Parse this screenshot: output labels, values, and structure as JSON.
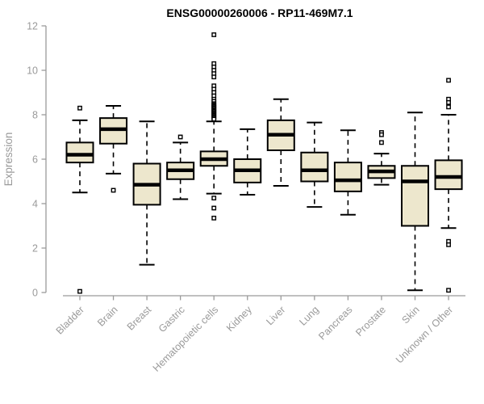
{
  "chart_data": {
    "type": "boxplot",
    "title": "ENSG00000260006 - RP11-469M7.1",
    "xlabel": "",
    "ylabel": "Expression",
    "ylim": [
      0,
      12
    ],
    "yticks": [
      0,
      2,
      4,
      6,
      8,
      10,
      12
    ],
    "grid": false,
    "legend": false,
    "box_fill_color": "#EDE7CD",
    "box_stroke_color": "#000000",
    "axis_color": "#9a9a9a",
    "title_color": "#000000",
    "categories": [
      "Bladder",
      "Brain",
      "Breast",
      "Gastric",
      "Hematopoietic cells",
      "Kidney",
      "Liver",
      "Lung",
      "Pancreas",
      "Prostate",
      "Skin",
      "Unknown / Other"
    ],
    "series": [
      {
        "category": "Bladder",
        "low": 4.5,
        "q1": 5.85,
        "median": 6.2,
        "q3": 6.75,
        "high": 7.75,
        "outliers": [
          8.3,
          0.05
        ]
      },
      {
        "category": "Brain",
        "low": 5.35,
        "q1": 6.7,
        "median": 7.35,
        "q3": 7.85,
        "high": 8.4,
        "outliers": [
          4.6
        ]
      },
      {
        "category": "Breast",
        "low": 1.25,
        "q1": 3.95,
        "median": 4.85,
        "q3": 5.8,
        "high": 7.7,
        "outliers": []
      },
      {
        "category": "Gastric",
        "low": 4.2,
        "q1": 5.1,
        "median": 5.5,
        "q3": 5.85,
        "high": 6.75,
        "outliers": [
          7.0
        ]
      },
      {
        "category": "Hematopoietic cells",
        "low": 4.45,
        "q1": 5.7,
        "median": 6.0,
        "q3": 6.35,
        "high": 7.7,
        "outliers": [
          11.6,
          10.3,
          10.15,
          10.0,
          9.85,
          9.7,
          9.3,
          9.15,
          9.0,
          8.85,
          8.7,
          8.6,
          8.5,
          8.45,
          8.4,
          8.35,
          8.3,
          8.25,
          8.2,
          8.15,
          8.1,
          8.05,
          8.0,
          7.95,
          7.9,
          7.85,
          7.8,
          4.25,
          3.8,
          3.35
        ]
      },
      {
        "category": "Kidney",
        "low": 4.4,
        "q1": 4.95,
        "median": 5.5,
        "q3": 6.0,
        "high": 7.35,
        "outliers": []
      },
      {
        "category": "Liver",
        "low": 4.8,
        "q1": 6.4,
        "median": 7.1,
        "q3": 7.75,
        "high": 8.7,
        "outliers": []
      },
      {
        "category": "Lung",
        "low": 3.85,
        "q1": 5.0,
        "median": 5.5,
        "q3": 6.3,
        "high": 7.65,
        "outliers": []
      },
      {
        "category": "Pancreas",
        "low": 3.5,
        "q1": 4.55,
        "median": 5.05,
        "q3": 5.85,
        "high": 7.3,
        "outliers": []
      },
      {
        "category": "Prostate",
        "low": 4.85,
        "q1": 5.15,
        "median": 5.45,
        "q3": 5.7,
        "high": 6.25,
        "outliers": [
          7.2,
          7.1,
          6.75
        ]
      },
      {
        "category": "Skin",
        "low": 0.1,
        "q1": 3.0,
        "median": 5.0,
        "q3": 5.7,
        "high": 8.1,
        "outliers": []
      },
      {
        "category": "Unknown / Other",
        "low": 2.9,
        "q1": 4.65,
        "median": 5.2,
        "q3": 5.95,
        "high": 8.0,
        "outliers": [
          9.55,
          8.7,
          8.55,
          8.35,
          2.3,
          2.15,
          0.1
        ]
      }
    ]
  }
}
